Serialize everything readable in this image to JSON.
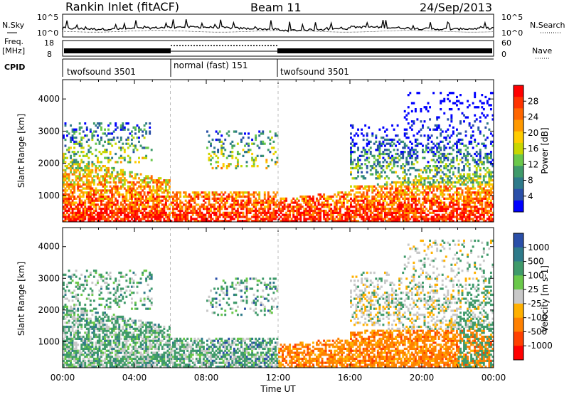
{
  "header": {
    "station": "Rankin Inlet (fitACF)",
    "beam": "Beam 11",
    "date": "24/Sep/2013"
  },
  "top_panels": {
    "nsky_label": "N.Sky",
    "nsky_ticks": [
      "10^5",
      "10^0"
    ],
    "nsearch_label": "N.Search",
    "nsearch_ticks": [
      "10^5",
      "10^0"
    ],
    "freq_label": "Freq.",
    "freq_unit": "[MHz]",
    "freq_ticks": [
      "18",
      "8"
    ],
    "nave_label": "Nave",
    "nave_ticks": [
      "60",
      "0"
    ],
    "cpid_label": "CPID",
    "cpid_segments": [
      {
        "label": "twofsound 3501",
        "start_h": 0,
        "end_h": 6
      },
      {
        "label": "normal (fast) 151",
        "start_h": 6,
        "end_h": 12
      },
      {
        "label": "twofsound 3501",
        "start_h": 12,
        "end_h": 24
      }
    ]
  },
  "chart_data": [
    {
      "type": "heatmap",
      "name": "power",
      "ylabel": "Slant Range [km]",
      "xlabel": "",
      "xlim": [
        0,
        24
      ],
      "ylim": [
        180,
        4600
      ],
      "yticks": [
        "1000",
        "2000",
        "3000",
        "4000"
      ],
      "colorbar": {
        "label": "Power [dB]",
        "ticks": [
          "28",
          "24",
          "20",
          "16",
          "12",
          "8",
          "4"
        ],
        "colors": [
          "#ff0000",
          "#ff3300",
          "#ff6600",
          "#ff9900",
          "#ffcc00",
          "#c8d600",
          "#6ac84a",
          "#3f9a6a",
          "#2e7a8a",
          "#2a4fa8",
          "#0000ff"
        ]
      }
    },
    {
      "type": "heatmap",
      "name": "velocity",
      "ylabel": "Slant Range [km]",
      "xlabel": "Time UT",
      "xlim": [
        0,
        24
      ],
      "ylim": [
        180,
        4600
      ],
      "yticks": [
        "1000",
        "2000",
        "3000",
        "4000"
      ],
      "xticks": [
        "00:00",
        "04:00",
        "08:00",
        "12:00",
        "16:00",
        "20:00",
        "00:00"
      ],
      "colorbar": {
        "label": "Velocity [m s-1]",
        "ticks": [
          "1000",
          "500",
          "100",
          "25",
          "-25",
          "-100",
          "-500",
          "-1000"
        ],
        "colors": [
          "#2a4fa8",
          "#2e7a8a",
          "#3f9a6a",
          "#6ac84a",
          "#c8c8c8",
          "#ffb000",
          "#ff8000",
          "#ff4000",
          "#ff0000"
        ]
      }
    }
  ]
}
